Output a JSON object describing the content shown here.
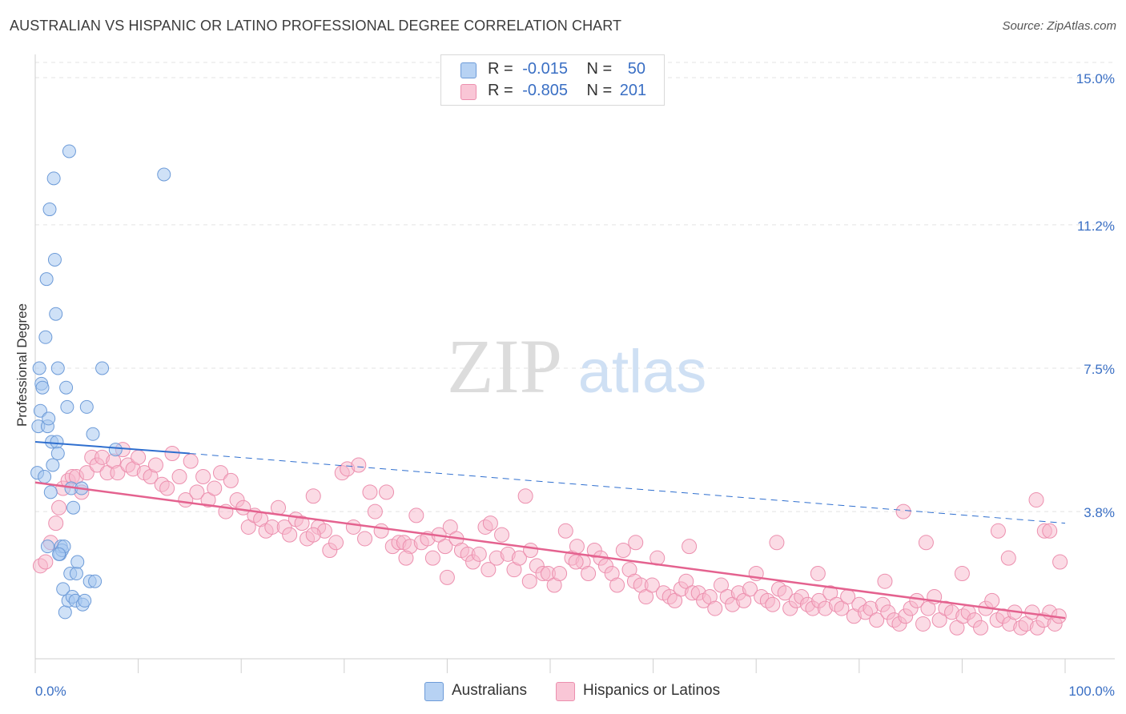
{
  "title": "AUSTRALIAN VS HISPANIC OR LATINO PROFESSIONAL DEGREE CORRELATION CHART",
  "source": "Source: ZipAtlas.com",
  "watermark": {
    "zip": "ZIP",
    "atlas": "atlas"
  },
  "legend": {
    "r_label": "R =",
    "n_label": "N =",
    "rows": [
      {
        "r": "-0.015",
        "n": "50"
      },
      {
        "r": "-0.805",
        "n": "201"
      }
    ]
  },
  "colors": {
    "australians_fill": "#a8c8f0",
    "australians_stroke": "#6d9bd8",
    "hispanics_fill": "#f7b8cc",
    "hispanics_stroke": "#ec8fae",
    "australians_line": "#2f6fcf",
    "hispanics_line": "#e4628f",
    "tick_label": "#3a6fc4"
  },
  "chart_data": {
    "type": "scatter",
    "title": "AUSTRALIAN VS HISPANIC OR LATINO PROFESSIONAL DEGREE CORRELATION CHART",
    "xlabel": "",
    "ylabel": "Professional Degree",
    "xlim": [
      0,
      100
    ],
    "ylim": [
      0,
      15.5
    ],
    "x_tick_labels": [
      "0.0%",
      "100.0%"
    ],
    "y_ticks": [
      3.8,
      7.5,
      11.2,
      15.0
    ],
    "y_tick_labels": [
      "3.8%",
      "7.5%",
      "11.2%",
      "15.0%"
    ],
    "grid": true,
    "legend_position": "bottom",
    "series": [
      {
        "name": "Australians",
        "r": -0.015,
        "n": 50,
        "trend": {
          "x": [
            0,
            15,
            100
          ],
          "y": [
            5.6,
            5.3,
            3.5
          ]
        },
        "points": [
          [
            0.2,
            4.8
          ],
          [
            0.3,
            6.0
          ],
          [
            0.4,
            7.5
          ],
          [
            0.5,
            6.4
          ],
          [
            0.6,
            7.1
          ],
          [
            0.7,
            7.0
          ],
          [
            0.9,
            4.7
          ],
          [
            1.0,
            8.3
          ],
          [
            1.1,
            9.8
          ],
          [
            1.2,
            6.0
          ],
          [
            1.3,
            6.2
          ],
          [
            1.4,
            11.6
          ],
          [
            1.5,
            4.3
          ],
          [
            1.6,
            5.6
          ],
          [
            1.7,
            5.0
          ],
          [
            1.8,
            12.4
          ],
          [
            1.9,
            10.3
          ],
          [
            2.0,
            8.9
          ],
          [
            2.1,
            5.6
          ],
          [
            2.2,
            7.5
          ],
          [
            2.2,
            5.3
          ],
          [
            2.4,
            2.7
          ],
          [
            2.5,
            2.9
          ],
          [
            2.6,
            2.8
          ],
          [
            2.7,
            1.8
          ],
          [
            2.8,
            2.9
          ],
          [
            2.9,
            1.2
          ],
          [
            3.0,
            7.0
          ],
          [
            3.1,
            6.5
          ],
          [
            3.2,
            1.5
          ],
          [
            3.3,
            13.1
          ],
          [
            3.4,
            2.2
          ],
          [
            3.5,
            4.4
          ],
          [
            3.6,
            1.6
          ],
          [
            3.7,
            3.9
          ],
          [
            3.9,
            1.5
          ],
          [
            4.0,
            2.2
          ],
          [
            4.1,
            2.5
          ],
          [
            4.5,
            4.4
          ],
          [
            4.6,
            1.4
          ],
          [
            4.8,
            1.5
          ],
          [
            5.0,
            6.5
          ],
          [
            5.3,
            2.0
          ],
          [
            5.6,
            5.8
          ],
          [
            5.8,
            2.0
          ],
          [
            6.5,
            7.5
          ],
          [
            7.8,
            5.4
          ],
          [
            12.5,
            12.5
          ],
          [
            1.2,
            2.9
          ],
          [
            2.3,
            2.7
          ]
        ]
      },
      {
        "name": "Hispanics or Latinos",
        "r": -0.805,
        "n": 201,
        "trend": {
          "x": [
            0,
            100
          ],
          "y": [
            4.55,
            1.05
          ]
        },
        "points": [
          [
            0.5,
            2.4
          ],
          [
            1.0,
            2.5
          ],
          [
            1.5,
            3.0
          ],
          [
            2.0,
            3.5
          ],
          [
            2.3,
            3.9
          ],
          [
            2.7,
            4.4
          ],
          [
            3.2,
            4.6
          ],
          [
            3.6,
            4.7
          ],
          [
            4.0,
            4.7
          ],
          [
            4.5,
            4.3
          ],
          [
            5.0,
            4.8
          ],
          [
            5.5,
            5.2
          ],
          [
            6.0,
            5.0
          ],
          [
            6.5,
            5.2
          ],
          [
            7.0,
            4.8
          ],
          [
            7.6,
            5.1
          ],
          [
            8.0,
            4.8
          ],
          [
            8.5,
            5.4
          ],
          [
            9.0,
            5.0
          ],
          [
            9.5,
            4.9
          ],
          [
            10.0,
            5.2
          ],
          [
            10.6,
            4.8
          ],
          [
            11.2,
            4.7
          ],
          [
            11.7,
            5.0
          ],
          [
            12.3,
            4.5
          ],
          [
            12.8,
            4.4
          ],
          [
            13.3,
            5.3
          ],
          [
            14.0,
            4.7
          ],
          [
            14.6,
            4.1
          ],
          [
            15.1,
            5.1
          ],
          [
            15.7,
            4.3
          ],
          [
            16.3,
            4.7
          ],
          [
            16.8,
            4.1
          ],
          [
            17.4,
            4.4
          ],
          [
            18.0,
            4.8
          ],
          [
            18.5,
            3.8
          ],
          [
            19.0,
            4.6
          ],
          [
            19.6,
            4.1
          ],
          [
            20.2,
            3.9
          ],
          [
            20.7,
            3.4
          ],
          [
            21.3,
            3.7
          ],
          [
            21.9,
            3.6
          ],
          [
            22.4,
            3.3
          ],
          [
            23.0,
            3.4
          ],
          [
            23.6,
            3.9
          ],
          [
            24.2,
            3.4
          ],
          [
            24.7,
            3.2
          ],
          [
            25.3,
            3.6
          ],
          [
            25.9,
            3.5
          ],
          [
            26.4,
            3.1
          ],
          [
            27.0,
            4.2
          ],
          [
            27.5,
            3.4
          ],
          [
            28.1,
            3.3
          ],
          [
            28.6,
            2.8
          ],
          [
            29.2,
            3.0
          ],
          [
            29.8,
            4.8
          ],
          [
            30.3,
            4.9
          ],
          [
            30.9,
            3.4
          ],
          [
            31.4,
            5.0
          ],
          [
            32.0,
            3.1
          ],
          [
            32.5,
            4.3
          ],
          [
            33.0,
            3.8
          ],
          [
            33.6,
            3.3
          ],
          [
            34.1,
            4.3
          ],
          [
            34.7,
            2.9
          ],
          [
            35.3,
            3.0
          ],
          [
            35.8,
            3.0
          ],
          [
            36.4,
            2.9
          ],
          [
            37.0,
            3.7
          ],
          [
            37.5,
            3.0
          ],
          [
            38.1,
            3.1
          ],
          [
            38.6,
            2.6
          ],
          [
            39.2,
            3.2
          ],
          [
            39.8,
            2.9
          ],
          [
            40.3,
            3.4
          ],
          [
            40.9,
            3.1
          ],
          [
            41.4,
            2.8
          ],
          [
            42.0,
            2.7
          ],
          [
            42.5,
            2.5
          ],
          [
            43.1,
            2.7
          ],
          [
            43.7,
            3.4
          ],
          [
            44.2,
            3.5
          ],
          [
            44.8,
            2.6
          ],
          [
            45.3,
            3.2
          ],
          [
            45.9,
            2.7
          ],
          [
            46.5,
            2.3
          ],
          [
            47.0,
            2.6
          ],
          [
            47.6,
            4.2
          ],
          [
            48.1,
            2.8
          ],
          [
            48.7,
            2.4
          ],
          [
            49.3,
            2.2
          ],
          [
            49.8,
            2.2
          ],
          [
            50.4,
            1.9
          ],
          [
            50.9,
            2.2
          ],
          [
            51.5,
            3.3
          ],
          [
            52.1,
            2.6
          ],
          [
            52.6,
            2.9
          ],
          [
            53.2,
            2.5
          ],
          [
            53.7,
            2.2
          ],
          [
            54.3,
            2.8
          ],
          [
            54.9,
            2.6
          ],
          [
            55.4,
            2.4
          ],
          [
            56.0,
            2.2
          ],
          [
            56.5,
            1.9
          ],
          [
            57.1,
            2.8
          ],
          [
            57.7,
            2.3
          ],
          [
            58.2,
            2.0
          ],
          [
            58.8,
            1.9
          ],
          [
            59.3,
            1.6
          ],
          [
            59.9,
            1.9
          ],
          [
            60.4,
            2.6
          ],
          [
            61.0,
            1.7
          ],
          [
            61.6,
            1.6
          ],
          [
            62.1,
            1.5
          ],
          [
            62.7,
            1.8
          ],
          [
            63.2,
            2.0
          ],
          [
            63.8,
            1.7
          ],
          [
            64.4,
            1.7
          ],
          [
            64.9,
            1.5
          ],
          [
            65.5,
            1.6
          ],
          [
            66.0,
            1.3
          ],
          [
            66.6,
            1.9
          ],
          [
            67.2,
            1.6
          ],
          [
            67.7,
            1.4
          ],
          [
            68.3,
            1.7
          ],
          [
            68.8,
            1.5
          ],
          [
            69.4,
            1.8
          ],
          [
            70.0,
            2.2
          ],
          [
            70.5,
            1.6
          ],
          [
            71.1,
            1.5
          ],
          [
            71.6,
            1.4
          ],
          [
            72.2,
            1.8
          ],
          [
            72.8,
            1.7
          ],
          [
            73.3,
            1.3
          ],
          [
            73.9,
            1.5
          ],
          [
            74.4,
            1.6
          ],
          [
            75.0,
            1.4
          ],
          [
            75.5,
            1.3
          ],
          [
            76.1,
            1.5
          ],
          [
            76.7,
            1.3
          ],
          [
            77.2,
            1.7
          ],
          [
            77.8,
            1.4
          ],
          [
            78.3,
            1.3
          ],
          [
            78.9,
            1.6
          ],
          [
            79.5,
            1.1
          ],
          [
            80.0,
            1.4
          ],
          [
            80.6,
            1.2
          ],
          [
            81.1,
            1.3
          ],
          [
            81.7,
            1.0
          ],
          [
            82.3,
            1.4
          ],
          [
            82.8,
            1.2
          ],
          [
            83.4,
            1.0
          ],
          [
            83.9,
            0.9
          ],
          [
            84.5,
            1.1
          ],
          [
            85.0,
            1.3
          ],
          [
            85.6,
            1.5
          ],
          [
            86.2,
            0.9
          ],
          [
            86.7,
            1.3
          ],
          [
            87.3,
            1.6
          ],
          [
            87.8,
            1.0
          ],
          [
            88.4,
            1.3
          ],
          [
            89.0,
            1.2
          ],
          [
            89.5,
            0.8
          ],
          [
            90.1,
            1.1
          ],
          [
            90.6,
            1.2
          ],
          [
            91.2,
            1.0
          ],
          [
            91.8,
            0.8
          ],
          [
            92.3,
            1.3
          ],
          [
            92.9,
            1.5
          ],
          [
            93.4,
            1.0
          ],
          [
            94.0,
            1.1
          ],
          [
            94.6,
            0.9
          ],
          [
            95.1,
            1.2
          ],
          [
            95.7,
            0.8
          ],
          [
            96.2,
            0.9
          ],
          [
            96.8,
            1.2
          ],
          [
            97.3,
            0.8
          ],
          [
            97.9,
            1.0
          ],
          [
            98.5,
            1.2
          ],
          [
            99.0,
            0.9
          ],
          [
            99.4,
            1.1
          ],
          [
            72.0,
            3.0
          ],
          [
            76.0,
            2.2
          ],
          [
            82.5,
            2.0
          ],
          [
            84.3,
            3.8
          ],
          [
            86.5,
            3.0
          ],
          [
            90.0,
            2.2
          ],
          [
            93.5,
            3.3
          ],
          [
            94.5,
            2.6
          ],
          [
            98.0,
            3.3
          ],
          [
            98.5,
            3.3
          ],
          [
            97.2,
            4.1
          ],
          [
            99.5,
            2.5
          ],
          [
            63.5,
            2.9
          ],
          [
            58.3,
            3.0
          ],
          [
            52.5,
            2.5
          ],
          [
            48.0,
            2.0
          ],
          [
            44.0,
            2.3
          ],
          [
            40.0,
            2.1
          ],
          [
            36.0,
            2.6
          ],
          [
            27.0,
            3.2
          ]
        ]
      }
    ]
  },
  "bottom_legend": [
    {
      "label": "Australians"
    },
    {
      "label": "Hispanics or Latinos"
    }
  ]
}
